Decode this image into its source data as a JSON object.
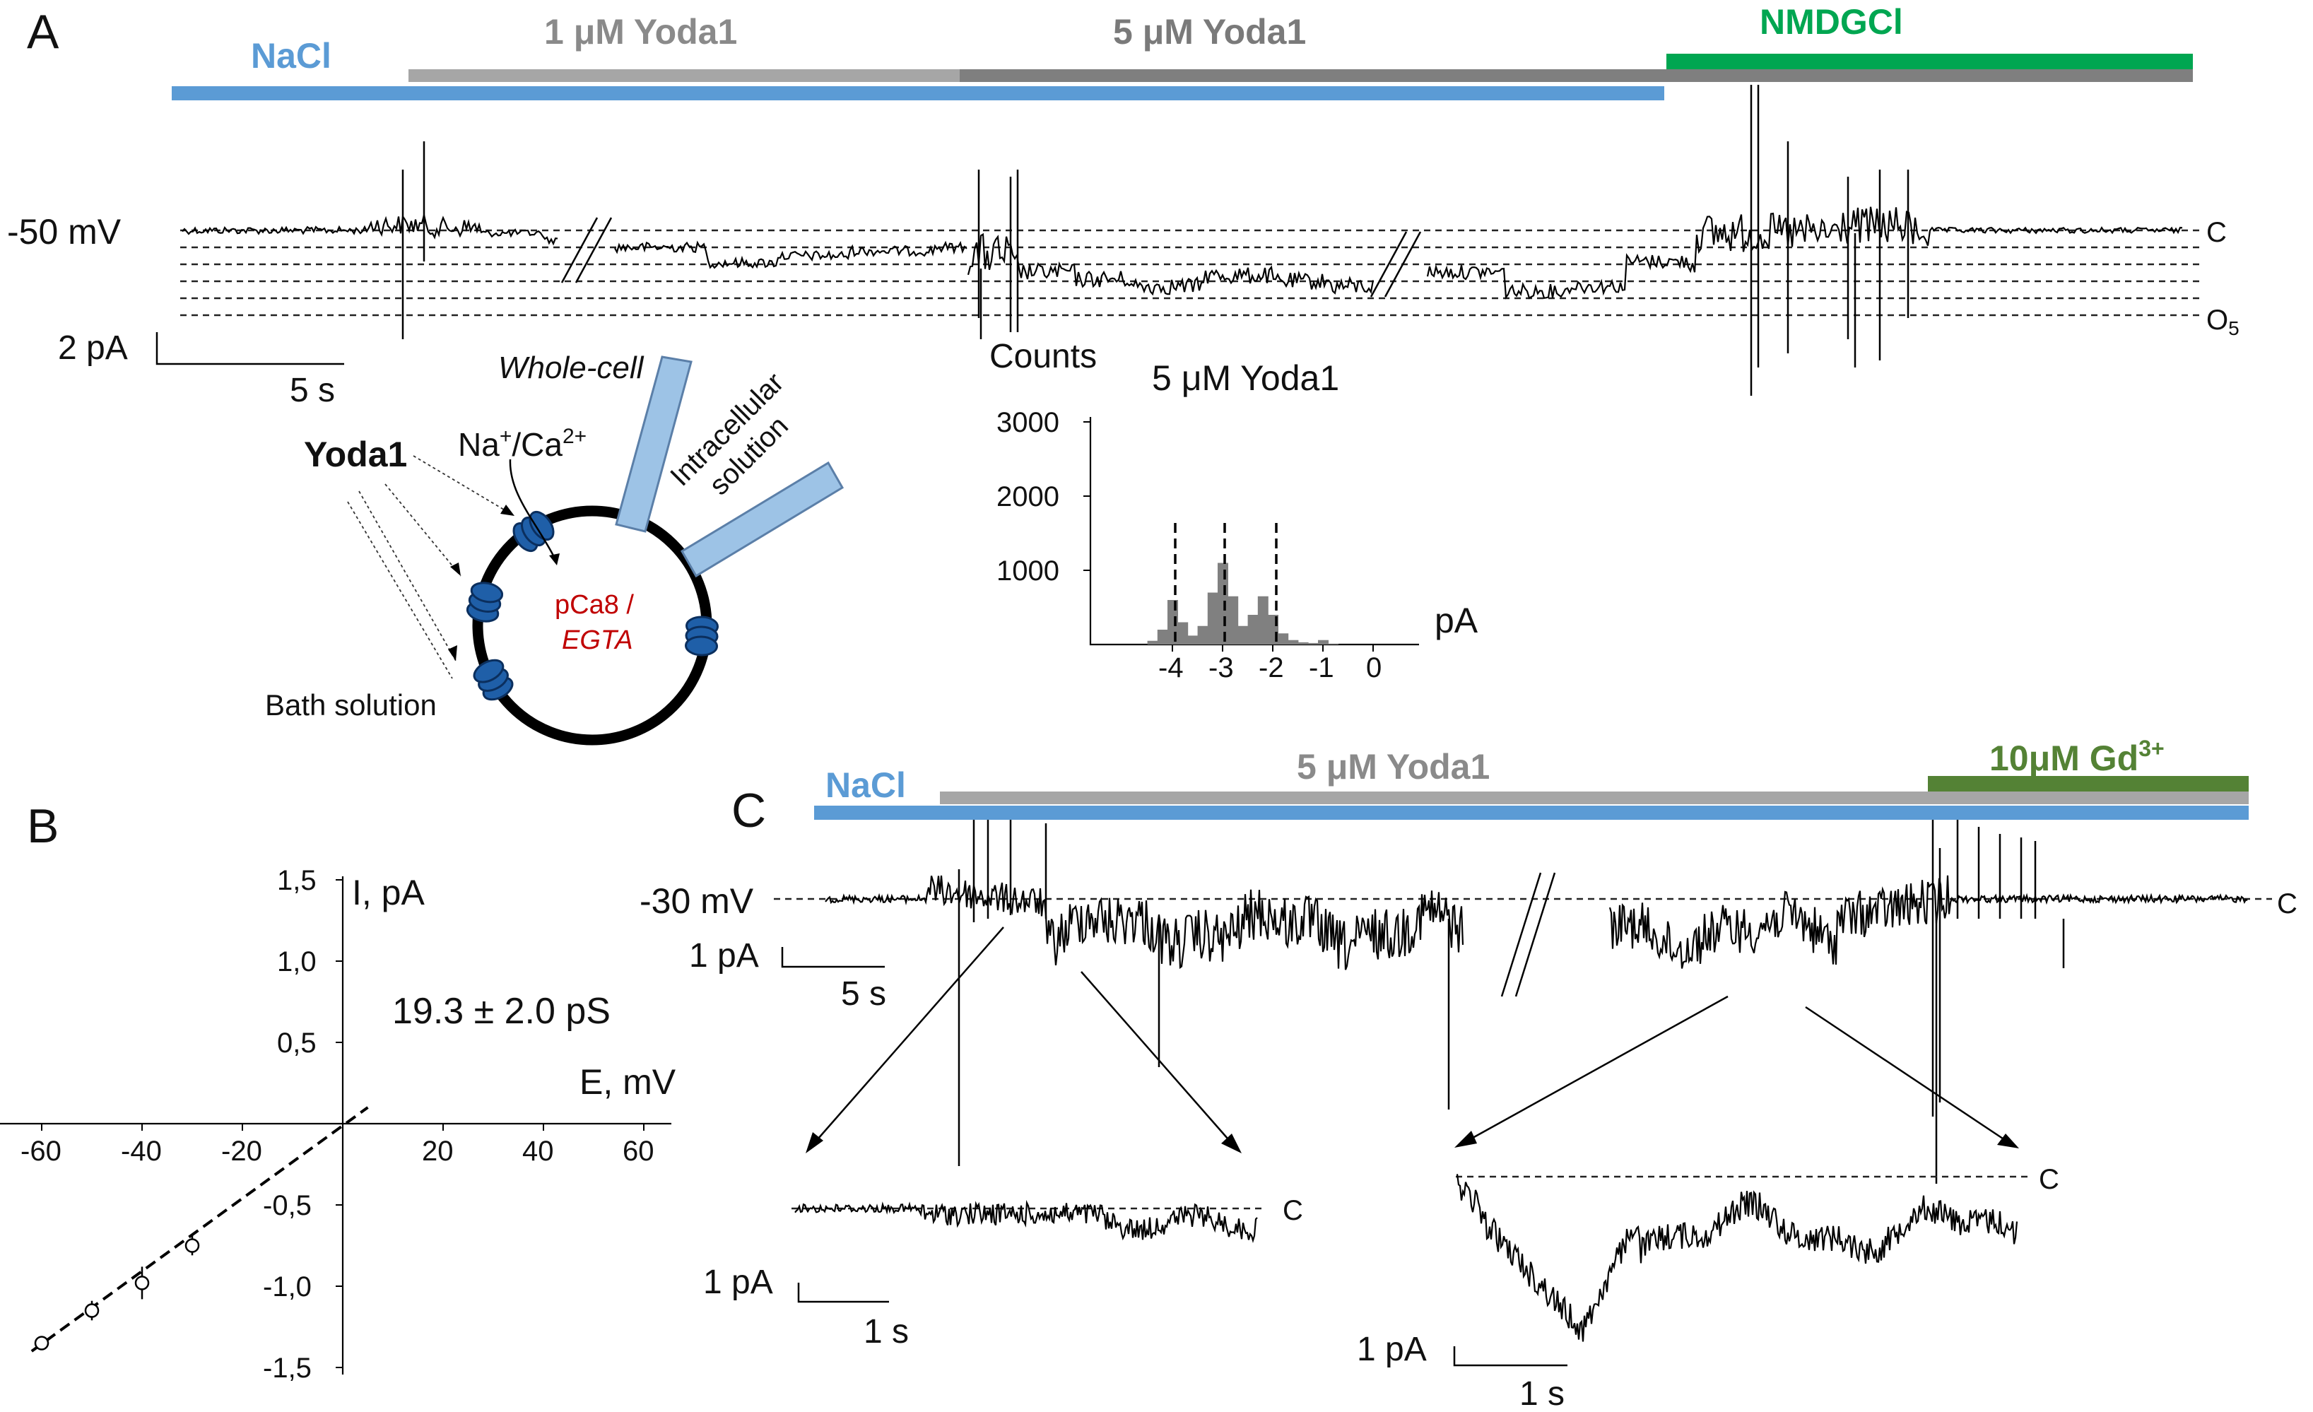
{
  "panelA": {
    "letter": "A",
    "bars": {
      "nacl": "NaCl",
      "yoda1_1um": "1 μM Yoda1",
      "yoda1_5um": "5 μM Yoda1",
      "nmdgcl": "NMDGCl"
    },
    "holding": "-50 mV",
    "closed_label": "C",
    "open_label": "O",
    "open_sub": "5",
    "scale_current": "2 pA",
    "scale_time": "5 s",
    "schematic": {
      "whole_cell": "Whole-cell",
      "yoda1": "Yoda1",
      "ion_main": "Na",
      "ion_sup1": "+",
      "ion_sep": "/Ca",
      "ion_sup2": "2+",
      "intracellular_line1": "Intracellular",
      "intracellular_line2": "solution",
      "pca_line1": "pCa8 /",
      "pca_line2": "EGTA",
      "bath": "Bath solution"
    },
    "histogram": {
      "ylabel": "Counts",
      "title": "5 μM Yoda1",
      "xlabel": "pA",
      "yticks": [
        "3000",
        "2000",
        "1000"
      ],
      "xticks": [
        "-4",
        "-3",
        "-2",
        "-1",
        "0"
      ]
    }
  },
  "panelB": {
    "letter": "B",
    "ylabel": "I, pA",
    "xlabel": "E, mV",
    "conductance": "19.3 ± 2.0 pS",
    "xticks": [
      "-60",
      "-40",
      "-20",
      "20",
      "40",
      "60"
    ],
    "yticks": [
      "1,5",
      "1,0",
      "0,5",
      "-0,5",
      "-1,0",
      "-1,5"
    ]
  },
  "panelC": {
    "letter": "C",
    "bars": {
      "nacl": "NaCl",
      "yoda1_5um": "5 μM Yoda1",
      "gd_main": "10μM Gd",
      "gd_sup": "3+"
    },
    "holding": "-30 mV",
    "closed_label": "C",
    "scale_current": "1 pA",
    "scale_time": "5 s",
    "inset1": {
      "scale_current": "1 pA",
      "scale_time": "1 s",
      "closed_label": "C"
    },
    "inset2": {
      "scale_current": "1 pA",
      "scale_time": "1 s",
      "closed_label": "C"
    }
  },
  "colors": {
    "nacl": "#5b9bd5",
    "yoda_light": "#a6a6a6",
    "yoda_dark": "#7f7f7f",
    "nmdg": "#00a651",
    "gd": "#548235",
    "channel": "#1f5fa8",
    "pca": "#c00000",
    "pipette": "#9dc3e6",
    "hist": "#808080"
  },
  "chart_data": [
    {
      "type": "bar",
      "title": "5 μM Yoda1",
      "xlabel": "pA",
      "ylabel": "Counts",
      "x": [
        -4.4,
        -4.2,
        -4.0,
        -3.8,
        -3.6,
        -3.4,
        -3.2,
        -3.0,
        -2.8,
        -2.6,
        -2.4,
        -2.2,
        -2.0,
        -1.8,
        -1.6,
        -1.4,
        -1.2,
        -1.0,
        -0.8
      ],
      "values": [
        50,
        200,
        600,
        300,
        120,
        250,
        700,
        1100,
        650,
        250,
        400,
        650,
        400,
        150,
        60,
        30,
        20,
        60,
        10
      ],
      "xlim": [
        -5,
        0.6
      ],
      "ylim": [
        0,
        3000
      ]
    },
    {
      "type": "scatter",
      "xlabel": "E, mV",
      "ylabel": "I, pA",
      "x": [
        -60,
        -50,
        -40,
        -30
      ],
      "y": [
        -1.35,
        -1.15,
        -0.98,
        -0.75
      ],
      "yerr": [
        0.03,
        0.06,
        0.1,
        0.06
      ],
      "xlim": [
        -65,
        65
      ],
      "ylim": [
        -1.5,
        1.5
      ],
      "fit_slope_pS": 19.3
    }
  ]
}
